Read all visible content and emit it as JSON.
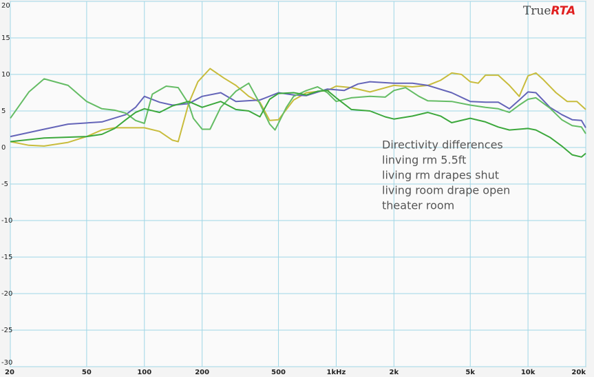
{
  "chart_data": {
    "type": "line",
    "log_x": true,
    "grid": true,
    "brand": {
      "text": "True",
      "accent": "RTA"
    },
    "annotation": "Directivity differences",
    "xlim": [
      20,
      20000
    ],
    "ylim": [
      -30,
      20
    ],
    "xticks": [
      20,
      50,
      100,
      200,
      500,
      {
        "value": 1000,
        "label": "1kHz"
      },
      {
        "value": 2000,
        "label": "2k"
      },
      {
        "value": 5000,
        "label": "5k"
      },
      {
        "value": 10000,
        "label": "10k"
      },
      {
        "value": 20000,
        "label": "20k"
      }
    ],
    "yticks": [
      20,
      15,
      10,
      5,
      0,
      -5,
      -10,
      -15,
      -20,
      -25,
      -30
    ],
    "series": [
      {
        "name": "linving rm 5.5ft",
        "color": "#c8bc3c",
        "x": [
          20,
          25,
          30,
          40,
          50,
          60,
          70,
          100,
          120,
          140,
          150,
          170,
          190,
          220,
          260,
          300,
          350,
          400,
          450,
          500,
          600,
          700,
          900,
          1000,
          1200,
          1500,
          2000,
          2500,
          3000,
          3500,
          4000,
          4500,
          5000,
          5500,
          6000,
          7000,
          8000,
          9000,
          10000,
          11000,
          12000,
          14000,
          16000,
          18000,
          20000
        ],
        "values": [
          0.8,
          0.3,
          0.2,
          0.7,
          1.5,
          2.4,
          2.7,
          2.7,
          2.2,
          1.0,
          0.8,
          6,
          9,
          10.8,
          9.5,
          8.5,
          7,
          6.2,
          3.7,
          3.8,
          6.5,
          7.5,
          7.8,
          8.4,
          8.2,
          7.6,
          8.5,
          8.3,
          8.5,
          9.2,
          10.2,
          10,
          9,
          8.8,
          9.9,
          9.9,
          8.5,
          7,
          9.8,
          10.2,
          9.3,
          7.5,
          6.3,
          6.3,
          5.2
        ]
      },
      {
        "name": "living rm drapes shut",
        "color": "#6464b8",
        "x": [
          20,
          30,
          40,
          60,
          80,
          90,
          100,
          120,
          140,
          170,
          200,
          250,
          300,
          400,
          500,
          600,
          700,
          900,
          1100,
          1300,
          1500,
          2000,
          2500,
          3000,
          4000,
          5000,
          6000,
          7000,
          8000,
          9000,
          10000,
          11000,
          13000,
          15000,
          17000,
          19000,
          20000
        ],
        "values": [
          1.5,
          2.5,
          3.2,
          3.5,
          4.5,
          5.5,
          7,
          6.2,
          5.8,
          6,
          7,
          7.5,
          6.3,
          6.5,
          7.5,
          7.2,
          7.1,
          8,
          7.8,
          8.7,
          9,
          8.8,
          8.8,
          8.5,
          7.5,
          6.3,
          6.2,
          6.2,
          5.3,
          6.5,
          7.6,
          7.5,
          5.5,
          4.5,
          3.8,
          3.7,
          2.7
        ]
      },
      {
        "name": "living room drape open",
        "color": "#64bc64",
        "x": [
          20,
          25,
          30,
          40,
          50,
          60,
          70,
          80,
          90,
          100,
          110,
          130,
          150,
          170,
          180,
          200,
          220,
          250,
          300,
          350,
          400,
          450,
          480,
          550,
          600,
          700,
          800,
          900,
          1000,
          1200,
          1500,
          1800,
          2000,
          2300,
          2700,
          3000,
          4000,
          5000,
          6000,
          7000,
          8000,
          9000,
          10000,
          11000,
          13000,
          15000,
          17000,
          19000,
          20000
        ],
        "values": [
          4,
          7.6,
          9.4,
          8.5,
          6.3,
          5.3,
          5.1,
          4.7,
          3.7,
          3.3,
          7.3,
          8.4,
          8.2,
          6,
          4,
          2.5,
          2.5,
          5.5,
          7.7,
          8.8,
          6,
          3.2,
          2.4,
          5.5,
          7,
          7.8,
          8.3,
          7.5,
          6.3,
          6.8,
          7,
          6.9,
          7.8,
          8.2,
          7,
          6.4,
          6.3,
          5.8,
          5.5,
          5.3,
          4.8,
          5.8,
          6.6,
          6.8,
          5.4,
          3.8,
          3,
          2.8,
          1.9
        ]
      },
      {
        "name": "theater room",
        "color": "#3ca83c",
        "x": [
          20,
          30,
          50,
          60,
          70,
          80,
          90,
          100,
          120,
          140,
          170,
          200,
          250,
          300,
          350,
          400,
          450,
          500,
          600,
          700,
          800,
          900,
          1000,
          1200,
          1500,
          1800,
          2000,
          2500,
          3000,
          3500,
          4000,
          5000,
          6000,
          7000,
          8000,
          10000,
          11000,
          13000,
          15000,
          17000,
          19000,
          20000
        ],
        "values": [
          0.8,
          1.3,
          1.5,
          1.8,
          2.6,
          3.8,
          4.8,
          5.3,
          4.8,
          5.7,
          6.3,
          5.5,
          6.3,
          5.2,
          5,
          4.2,
          6.6,
          7.4,
          7.5,
          7.2,
          7.7,
          7.8,
          6.8,
          5.2,
          5,
          4.2,
          3.9,
          4.3,
          4.8,
          4.3,
          3.4,
          4,
          3.5,
          2.8,
          2.4,
          2.6,
          2.4,
          1.4,
          0.2,
          -1,
          -1.3,
          -0.8
        ]
      }
    ]
  }
}
